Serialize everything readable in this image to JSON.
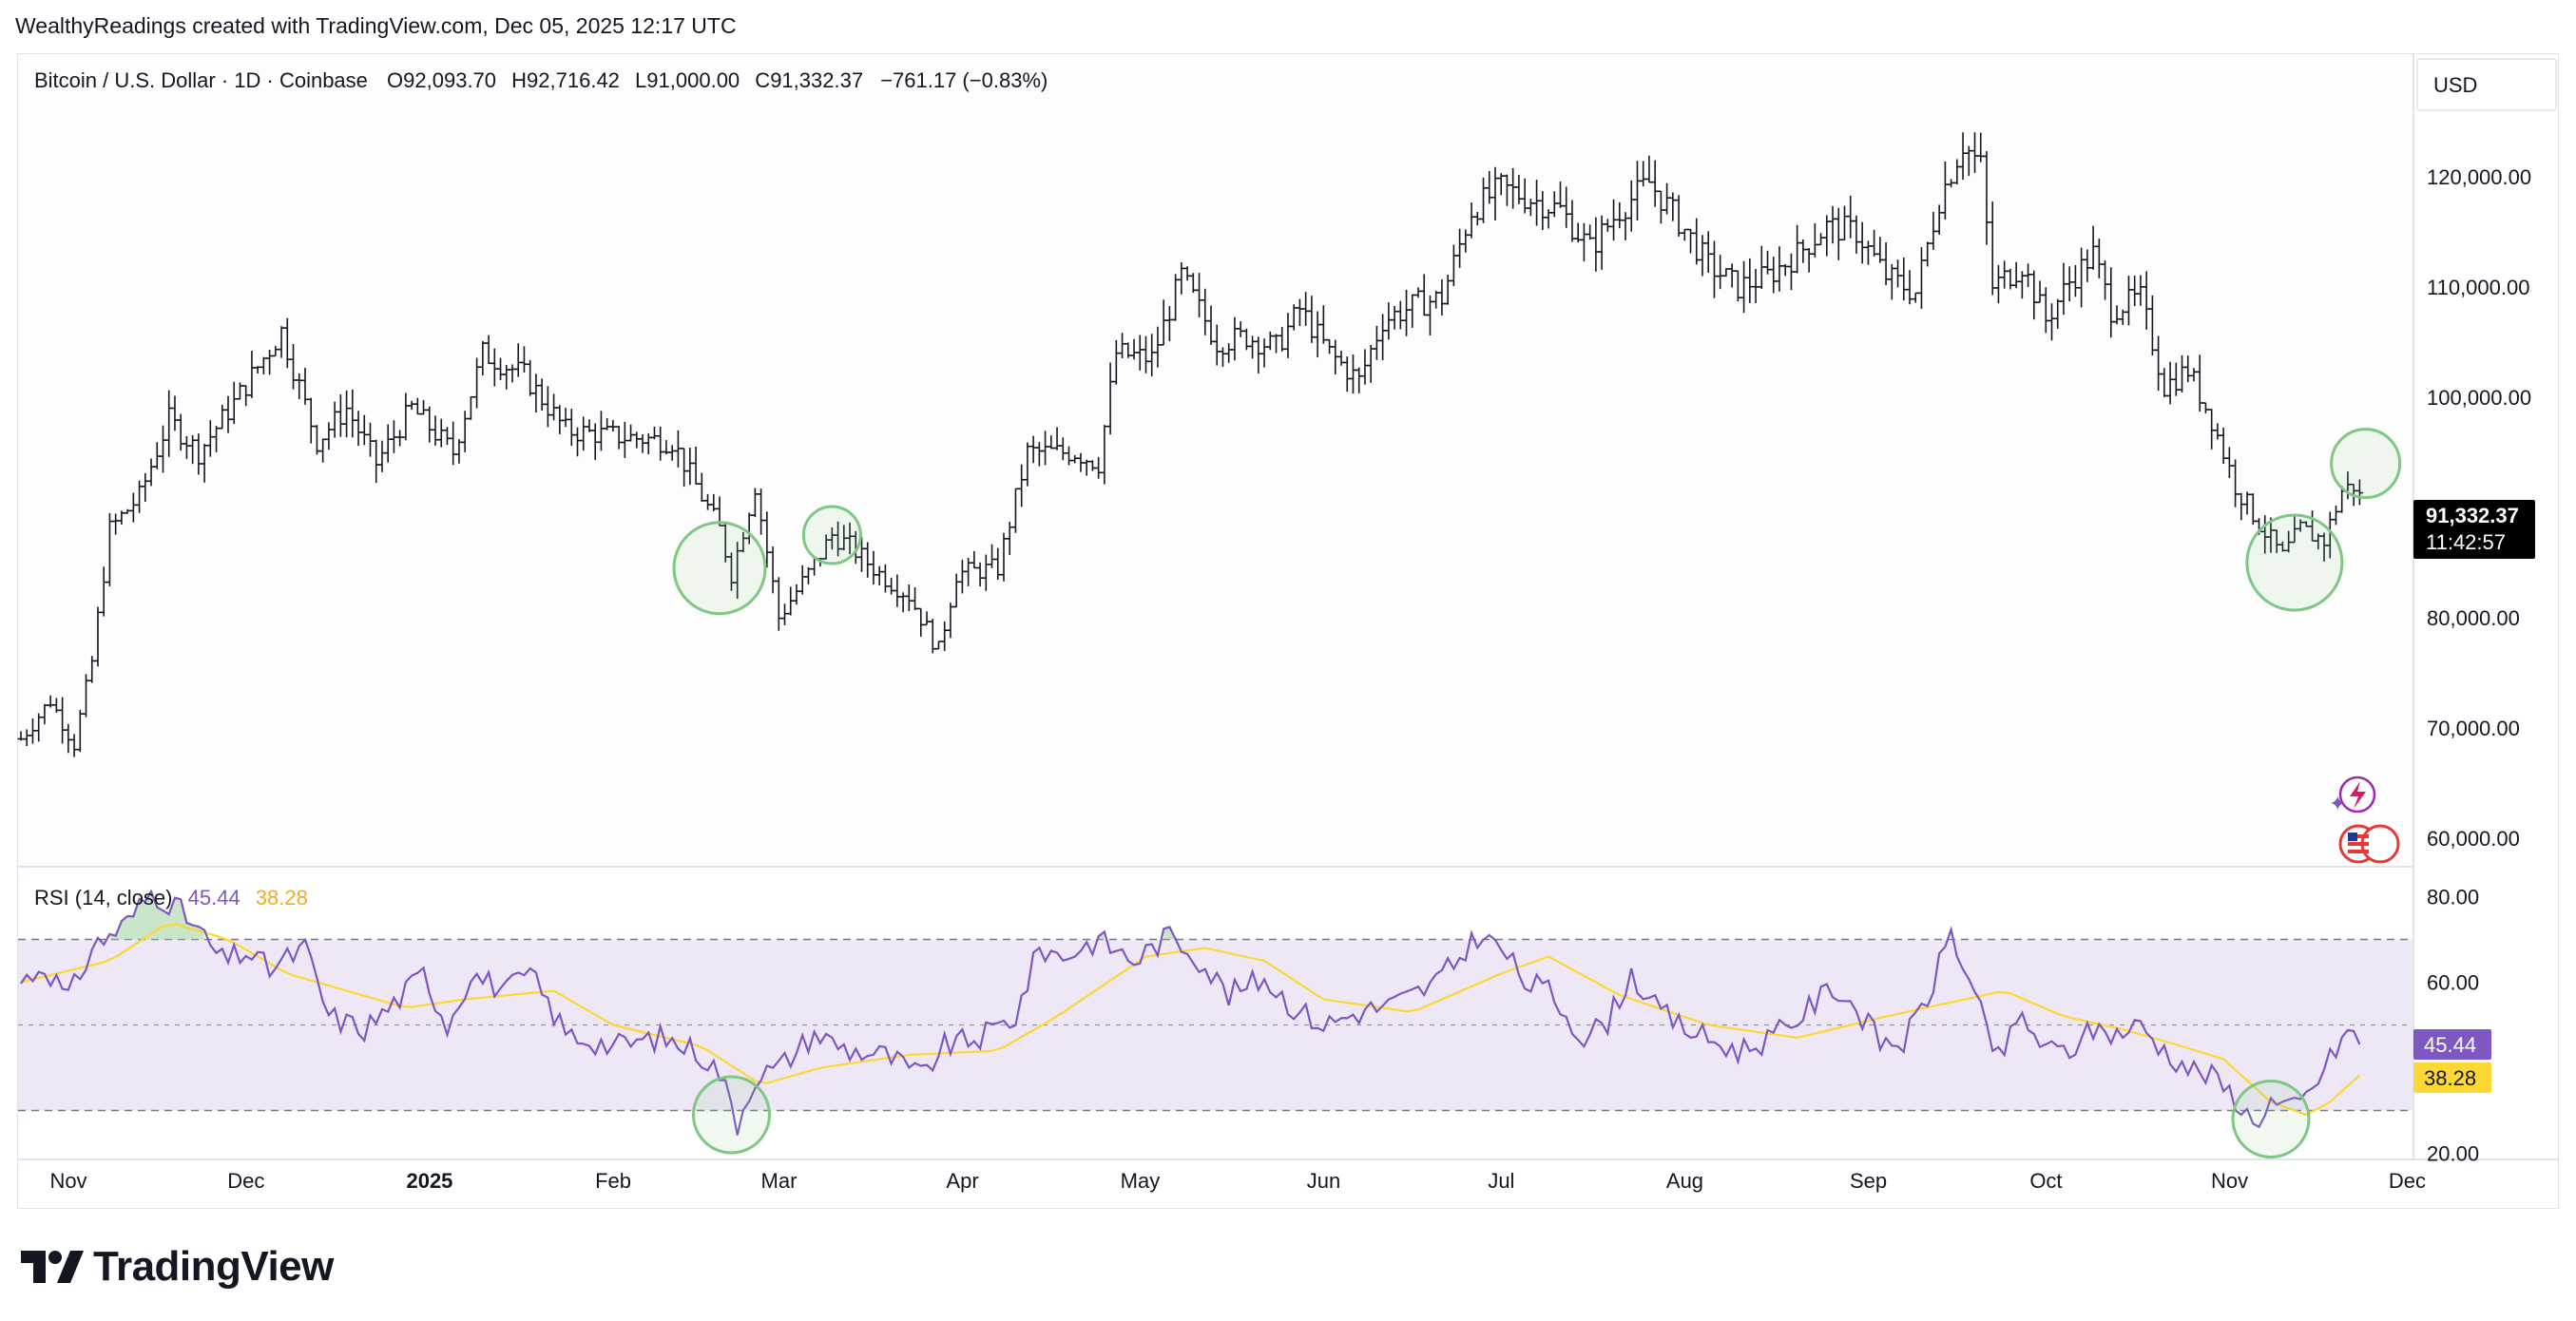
{
  "header": {
    "attribution": "WealthyReadings created with TradingView.com, Dec 05, 2025 12:17 UTC"
  },
  "footer": {
    "brand": "TradingView"
  },
  "legend": {
    "symbol": "Bitcoin / U.S. Dollar · 1D · Coinbase",
    "open_label": "O",
    "open": "92,093.70",
    "high_label": "H",
    "high": "92,716.42",
    "low_label": "L",
    "low": "91,000.00",
    "close_label": "C",
    "close": "91,332.37",
    "change": "−761.17 (−0.83%)"
  },
  "currency": "USD",
  "price_badge": {
    "price": "91,332.37",
    "countdown": "11:42:57"
  },
  "rsi_legend": {
    "label": "RSI (14, close)",
    "rsi": "45.44",
    "ma": "38.28"
  },
  "rsi_badges": {
    "rsi": "45.44",
    "ma": "38.28"
  },
  "colors": {
    "bars": "#131722",
    "rsi_line": "#7e57c2",
    "rsi_ma": "#fdd835",
    "rsi_band": "#ede7f6",
    "circle": "#81c784",
    "badge_dark": "#000000",
    "rsi_badge": "#7e57c2",
    "ma_badge": "#fdd835"
  },
  "chart_data": {
    "type": "ohlc",
    "title": "Bitcoin / U.S. Dollar · 1D · Coinbase",
    "y_ticks": [
      "120,000.00",
      "110,000.00",
      "100,000.00",
      "80,000.00",
      "70,000.00",
      "60,000.00"
    ],
    "y_tick_values": [
      120000,
      110000,
      100000,
      80000,
      70000,
      60000
    ],
    "ylim": [
      58000,
      127000
    ],
    "x_labels": [
      "Nov",
      "Dec",
      "2025",
      "Feb",
      "Mar",
      "Apr",
      "May",
      "Jun",
      "Jul",
      "Aug",
      "Sep",
      "Oct",
      "Nov",
      "Dec"
    ],
    "x_label_day": [
      0,
      30,
      61,
      92,
      120,
      151,
      181,
      212,
      242,
      273,
      304,
      334,
      365,
      395
    ],
    "x_start": "2024-11-01",
    "anchors": [
      [
        0,
        69000
      ],
      [
        5,
        72500
      ],
      [
        9,
        68500
      ],
      [
        12,
        76000
      ],
      [
        15,
        88000
      ],
      [
        20,
        91000
      ],
      [
        25,
        98000
      ],
      [
        30,
        95000
      ],
      [
        36,
        99500
      ],
      [
        44,
        106000
      ],
      [
        50,
        96000
      ],
      [
        55,
        99000
      ],
      [
        60,
        94000
      ],
      [
        66,
        99000
      ],
      [
        73,
        95000
      ],
      [
        78,
        104000
      ],
      [
        85,
        102000
      ],
      [
        92,
        97000
      ],
      [
        100,
        96500
      ],
      [
        110,
        96000
      ],
      [
        118,
        88000
      ],
      [
        120,
        84000
      ],
      [
        124,
        92000
      ],
      [
        128,
        80000
      ],
      [
        133,
        84000
      ],
      [
        137,
        87500
      ],
      [
        140,
        86500
      ],
      [
        145,
        84000
      ],
      [
        150,
        82000
      ],
      [
        155,
        77000
      ],
      [
        158,
        84000
      ],
      [
        165,
        84500
      ],
      [
        170,
        95000
      ],
      [
        178,
        95000
      ],
      [
        182,
        94000
      ],
      [
        185,
        104000
      ],
      [
        191,
        103500
      ],
      [
        196,
        111000
      ],
      [
        202,
        105000
      ],
      [
        207,
        105500
      ],
      [
        212,
        104500
      ],
      [
        216,
        108000
      ],
      [
        221,
        104000
      ],
      [
        226,
        101500
      ],
      [
        230,
        107000
      ],
      [
        236,
        108500
      ],
      [
        240,
        109000
      ],
      [
        245,
        117000
      ],
      [
        250,
        119000
      ],
      [
        255,
        118000
      ],
      [
        260,
        117000
      ],
      [
        265,
        113500
      ],
      [
        270,
        117000
      ],
      [
        275,
        119500
      ],
      [
        280,
        116000
      ],
      [
        285,
        112000
      ],
      [
        290,
        110000
      ],
      [
        295,
        111000
      ],
      [
        300,
        113000
      ],
      [
        305,
        115500
      ],
      [
        310,
        115000
      ],
      [
        315,
        111000
      ],
      [
        320,
        109500
      ],
      [
        324,
        118000
      ],
      [
        328,
        123000
      ],
      [
        331,
        121000
      ],
      [
        333,
        110000
      ],
      [
        338,
        112000
      ],
      [
        342,
        107000
      ],
      [
        346,
        110500
      ],
      [
        350,
        113000
      ],
      [
        353,
        108000
      ],
      [
        358,
        109000
      ],
      [
        362,
        101000
      ],
      [
        366,
        102500
      ],
      [
        370,
        98000
      ],
      [
        374,
        92000
      ],
      [
        378,
        88500
      ],
      [
        382,
        85500
      ],
      [
        385,
        88000
      ],
      [
        389,
        87000
      ],
      [
        392,
        91500
      ],
      [
        394,
        92000
      ],
      [
        395,
        91332
      ]
    ],
    "rsi": {
      "name": "RSI (14, close)",
      "levels": [
        70,
        50,
        30
      ],
      "y_ticks": [
        "80.00",
        "60.00",
        "20.00"
      ],
      "y_tick_values": [
        80,
        60,
        20
      ],
      "ylim": [
        19,
        83
      ],
      "anchors": [
        [
          0,
          60
        ],
        [
          4,
          64
        ],
        [
          8,
          56
        ],
        [
          12,
          68
        ],
        [
          18,
          74
        ],
        [
          22,
          81
        ],
        [
          26,
          78
        ],
        [
          30,
          72
        ],
        [
          34,
          65
        ],
        [
          38,
          67
        ],
        [
          42,
          63
        ],
        [
          48,
          68
        ],
        [
          52,
          52
        ],
        [
          58,
          49
        ],
        [
          63,
          55
        ],
        [
          68,
          62
        ],
        [
          72,
          50
        ],
        [
          76,
          62
        ],
        [
          82,
          58
        ],
        [
          86,
          62
        ],
        [
          92,
          48
        ],
        [
          100,
          45
        ],
        [
          108,
          47
        ],
        [
          114,
          44
        ],
        [
          118,
          39
        ],
        [
          121,
          27
        ],
        [
          124,
          38
        ],
        [
          128,
          40
        ],
        [
          134,
          48
        ],
        [
          140,
          44
        ],
        [
          146,
          43
        ],
        [
          152,
          38
        ],
        [
          156,
          45
        ],
        [
          162,
          47
        ],
        [
          168,
          52
        ],
        [
          172,
          68
        ],
        [
          176,
          66
        ],
        [
          182,
          70
        ],
        [
          188,
          65
        ],
        [
          194,
          71
        ],
        [
          198,
          67
        ],
        [
          204,
          57
        ],
        [
          210,
          61
        ],
        [
          215,
          54
        ],
        [
          220,
          50
        ],
        [
          226,
          53
        ],
        [
          232,
          55
        ],
        [
          238,
          59
        ],
        [
          242,
          64
        ],
        [
          246,
          71
        ],
        [
          250,
          68
        ],
        [
          254,
          60
        ],
        [
          258,
          58
        ],
        [
          264,
          47
        ],
        [
          268,
          51
        ],
        [
          272,
          62
        ],
        [
          276,
          54
        ],
        [
          280,
          50
        ],
        [
          286,
          46
        ],
        [
          290,
          44
        ],
        [
          294,
          46
        ],
        [
          298,
          49
        ],
        [
          302,
          54
        ],
        [
          306,
          59
        ],
        [
          310,
          54
        ],
        [
          314,
          46
        ],
        [
          318,
          46
        ],
        [
          322,
          56
        ],
        [
          326,
          72
        ],
        [
          330,
          56
        ],
        [
          334,
          42
        ],
        [
          338,
          52
        ],
        [
          342,
          44
        ],
        [
          346,
          44
        ],
        [
          350,
          49
        ],
        [
          354,
          48
        ],
        [
          358,
          50
        ],
        [
          362,
          44
        ],
        [
          366,
          40
        ],
        [
          370,
          38
        ],
        [
          374,
          33
        ],
        [
          377,
          27
        ],
        [
          380,
          32
        ],
        [
          383,
          30
        ],
        [
          386,
          33
        ],
        [
          390,
          42
        ],
        [
          393,
          49
        ],
        [
          395,
          45.44
        ]
      ],
      "ma_anchors": [
        [
          0,
          60
        ],
        [
          15,
          65
        ],
        [
          25,
          74
        ],
        [
          35,
          70
        ],
        [
          45,
          62
        ],
        [
          55,
          58
        ],
        [
          65,
          54
        ],
        [
          75,
          56
        ],
        [
          90,
          58
        ],
        [
          100,
          50
        ],
        [
          115,
          45
        ],
        [
          125,
          36
        ],
        [
          135,
          40
        ],
        [
          150,
          43
        ],
        [
          165,
          44
        ],
        [
          175,
          52
        ],
        [
          190,
          66
        ],
        [
          200,
          68
        ],
        [
          210,
          65
        ],
        [
          220,
          56
        ],
        [
          235,
          53
        ],
        [
          250,
          62
        ],
        [
          258,
          66
        ],
        [
          270,
          57
        ],
        [
          285,
          50
        ],
        [
          300,
          47
        ],
        [
          315,
          52
        ],
        [
          325,
          55
        ],
        [
          335,
          58
        ],
        [
          345,
          52
        ],
        [
          355,
          49
        ],
        [
          365,
          45
        ],
        [
          372,
          42
        ],
        [
          380,
          32
        ],
        [
          386,
          29
        ],
        [
          390,
          32
        ],
        [
          395,
          38.28
        ]
      ]
    },
    "circles": [
      {
        "chart": "price",
        "day": 118,
        "value": 84500,
        "radius": 48
      },
      {
        "chart": "price",
        "day": 137,
        "value": 87500,
        "radius": 30
      },
      {
        "chart": "price",
        "day": 384,
        "value": 85000,
        "radius": 50
      },
      {
        "chart": "price",
        "day": 396,
        "value": 94000,
        "radius": 36
      },
      {
        "chart": "rsi",
        "day": 120,
        "value": 29,
        "radius": 40
      },
      {
        "chart": "rsi",
        "day": 380,
        "value": 28,
        "radius": 40
      }
    ]
  }
}
